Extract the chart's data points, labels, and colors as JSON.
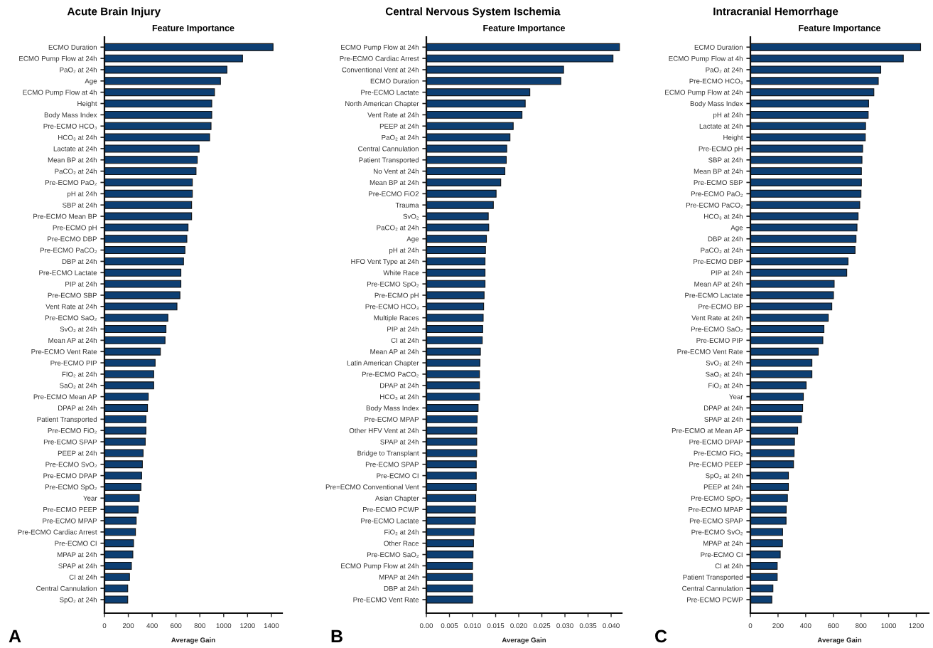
{
  "chart_data": [
    {
      "type": "bar",
      "orientation": "horizontal",
      "title": "Acute Brain Injury",
      "subtitle": "Feature Importance",
      "xlabel": "Average Gain",
      "color": "#0d3f73",
      "categories": [
        "ECMO Duration",
        "ECMO Pump Flow at 24h",
        "PaO₂ at 24h",
        "Age",
        "ECMO Pump Flow at 4h",
        "Height",
        "Body Mass Index",
        "Pre-ECMO HCO₃",
        "HCO₃ at 24h",
        "Lactate at 24h",
        "Mean BP at 24h",
        "PaCO₂ at 24h",
        "Pre-ECMO PaO₂",
        "pH at 24h",
        "SBP at 24h",
        "Pre-ECMO Mean BP",
        "Pre-ECMO pH",
        "Pre-ECMO DBP",
        "Pre-ECMO PaCO₂",
        "DBP at 24h",
        "Pre-ECMO Lactate",
        "PIP at 24h",
        "Pre-ECMO SBP",
        "Vent Rate at 24h",
        "Pre-ECMO SaO₂",
        "SvO₂ at 24h",
        "Mean AP at 24h",
        "Pre-ECMO Vent Rate",
        "Pre-ECMO PIP",
        "FIO₂ at 24h",
        "SaO₂ at 24h",
        "Pre-ECMO Mean AP",
        "DPAP at 24h",
        "Patient Transported",
        "Pre-ECMO FiO₂",
        "Pre-ECMO SPAP",
        "PEEP at 24h",
        "Pre-ECMO SvO₂",
        "Pre-ECMO DPAP",
        "Pre-ECMO SpO₂",
        "Year",
        "Pre-ECMO PEEP",
        "Pre-ECMO MPAP",
        "Pre-ECMO Cardiac Arrest",
        "Pre-ECMO CI",
        "MPAP at 24h",
        "SPAP at 24h",
        "CI at 24h",
        "Central Cannulation",
        "SpO₂ at 24h"
      ],
      "values": [
        1414,
        1158,
        1027,
        973,
        923,
        900,
        900,
        894,
        882,
        794,
        778,
        768,
        737,
        737,
        731,
        731,
        701,
        691,
        675,
        663,
        641,
        641,
        633,
        608,
        532,
        516,
        508,
        469,
        425,
        413,
        413,
        367,
        361,
        348,
        348,
        342,
        324,
        318,
        312,
        306,
        292,
        282,
        266,
        260,
        244,
        238,
        226,
        210,
        195,
        195
      ],
      "xlim": [
        0,
        1490
      ],
      "xticks": [
        0,
        200,
        400,
        600,
        800,
        1000,
        1200,
        1400
      ],
      "annotations": [
        "A"
      ]
    },
    {
      "type": "bar",
      "orientation": "horizontal",
      "title": "Central Nervous System Ischemia",
      "subtitle": "Feature Importance",
      "xlabel": "Average Gain",
      "color": "#0d3f73",
      "categories": [
        "ECMO Pump Flow at 24h",
        "Pre-ECMO Cardiac Arrest",
        "Conventional Vent at 24h",
        "ECMO Duration",
        "Pre-ECMO Lactate",
        "North American Chapter",
        "Vent Rate at 24h",
        "PEEP at 24h",
        "PaO₂ at 24h",
        "Central Cannulation",
        "Patient Transported",
        "No Vent at 24h",
        "Mean BP at 24h",
        "Pre-ECMO FiO2",
        "Trauma",
        "SvO₂",
        "PaCO₂ at 24h",
        "Age",
        "pH at 24h",
        "HFO Vent Type at 24h",
        "White Race",
        "Pre-ECMO SpO₂",
        "Pre-ECMO pH",
        "Pre-ECMO HCO₃",
        "Multiple Races",
        "PIP at 24h",
        "CI at 24h",
        "Mean AP at 24h",
        "Latin American Chapter",
        "Pre-ECMO PaCO₂",
        "DPAP at 24h",
        "HCO₃ at 24h",
        "Body Mass Index",
        "Pre-ECMO MPAP",
        "Other HFV Vent at 24h",
        "SPAP at 24h",
        "Bridge to Transplant",
        "Pre-ECMO SPAP",
        "Pre-ECMO CI",
        "Pre=ECMO Conventional Vent",
        "Asian Chapter",
        "Pre-ECMO PCWP",
        "Pre-ECMO Lactate",
        "FiO₂ at 24h",
        "Other Race",
        "Pre-ECMO SaO₂",
        "ECMO Pump Flow at 24h",
        "MPAP at 24h",
        "DBP at 24h",
        "Pre-ECMO Vent Rate"
      ],
      "values": [
        0.0418,
        0.0404,
        0.0297,
        0.0291,
        0.0224,
        0.0214,
        0.0207,
        0.0188,
        0.0181,
        0.0174,
        0.0173,
        0.017,
        0.0161,
        0.0151,
        0.0145,
        0.0134,
        0.0135,
        0.013,
        0.0128,
        0.0127,
        0.0127,
        0.0127,
        0.0125,
        0.0124,
        0.0123,
        0.0122,
        0.0121,
        0.0117,
        0.0116,
        0.0115,
        0.0115,
        0.0115,
        0.0112,
        0.011,
        0.0109,
        0.0109,
        0.0109,
        0.0108,
        0.0108,
        0.0108,
        0.0107,
        0.0106,
        0.0106,
        0.0103,
        0.0102,
        0.0101,
        0.01,
        0.01,
        0.01,
        0.01
      ],
      "xlim": [
        0,
        0.0423
      ],
      "xticks": [
        {
          "value": 0,
          "label": "0.00"
        },
        0.005,
        {
          "value": 0.01,
          "label": "0.010"
        },
        0.015,
        {
          "value": 0.02,
          "label": "0.020"
        },
        0.025,
        {
          "value": 0.03,
          "label": "0.030"
        },
        0.035,
        {
          "value": 0.04,
          "label": "0.040"
        }
      ],
      "annotations": [
        "B"
      ]
    },
    {
      "type": "bar",
      "orientation": "horizontal",
      "title": "Intracranial Hemorrhage",
      "subtitle": "Feature Importance",
      "xlabel": "Average Gain",
      "color": "#0d3f73",
      "categories": [
        "ECMO Duration",
        "ECMO Pump Flow at 4h",
        "PaO₂ at 24h",
        "Pre-ECMO HCO₃",
        "ECMO Pump Flow at 24h",
        "Body Mass Index",
        "pH at 24h",
        "Lactate at 24h",
        "Height",
        "Pre-ECMO pH",
        "SBP at 24h",
        "Mean BP at 24h",
        "Pre-ECMO SBP",
        "Pre-ECMO PaO₂",
        "Pre-ECMO PaCO₂",
        "HCO₃ at 24h",
        "Age",
        "DBP at 24h",
        "PaCO₂ at 24h",
        "Pre-ECMO DBP",
        "PIP at 24h",
        "Mean AP at 24h",
        "Pre-ECMO Lactate",
        "Pre-ECMO BP",
        "Vent Rate at 24h",
        "Pre-ECMO SaO₂",
        "Pre-ECMO PIP",
        "Pre-ECMO Vent Rate",
        "SvO₂ at 24h",
        "SaO₂ at 24h",
        "FiO₂ at 24h",
        "Year",
        "DPAP at 24h",
        "SPAP at 24h",
        "Pre-ECMO at Mean AP",
        "Pre-ECMO DPAP",
        "Pre-ECMO FiO₂",
        "Pre-ECMO PEEP",
        "SpO₂ at 24h",
        "PEEP at 24h",
        "Pre-ECMO SpO₂",
        "Pre-ECMO MPAP",
        "Pre-ECMO SPAP",
        "Pre-ECMO SvO₂",
        "MPAP at 24h",
        "Pre-ECMO CI",
        "CI at 24h",
        "Patient Transported",
        "Central Cannulation",
        "Pre-ECMO PCWP"
      ],
      "values": [
        1231,
        1106,
        943,
        925,
        893,
        855,
        852,
        833,
        831,
        812,
        807,
        803,
        803,
        800,
        791,
        779,
        771,
        764,
        757,
        706,
        697,
        606,
        601,
        589,
        563,
        532,
        524,
        491,
        445,
        445,
        403,
        383,
        378,
        369,
        342,
        319,
        316,
        312,
        275,
        275,
        268,
        259,
        258,
        233,
        232,
        216,
        194,
        194,
        163,
        155
      ],
      "xlim": [
        0,
        1290
      ],
      "xticks": [
        0,
        200,
        400,
        600,
        800,
        1000,
        1200
      ],
      "annotations": [
        "C"
      ]
    }
  ]
}
